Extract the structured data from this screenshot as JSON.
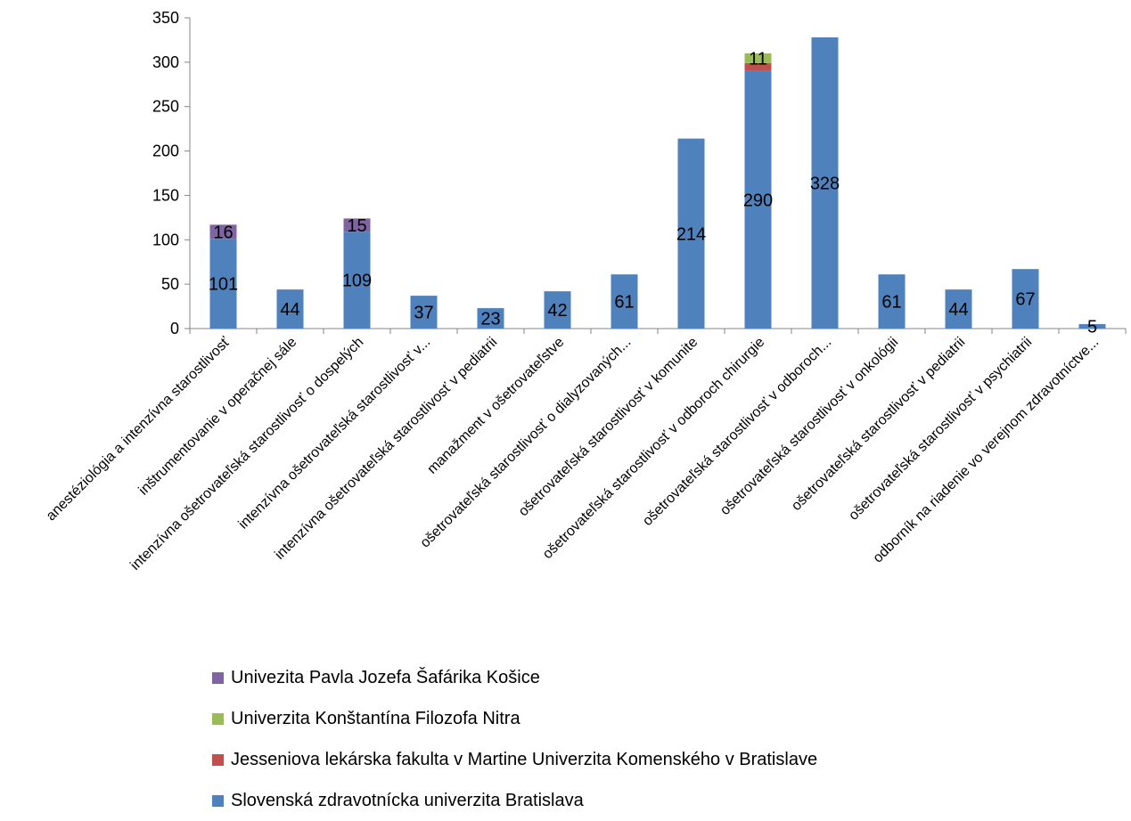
{
  "chart_data": {
    "type": "bar",
    "stacked": true,
    "title": "",
    "xlabel": "",
    "ylabel": "",
    "ylim": [
      0,
      350
    ],
    "yticks": [
      0,
      50,
      100,
      150,
      200,
      250,
      300,
      350
    ],
    "grid": false,
    "legend_position": "bottom",
    "categories": [
      "anestéziológia a intenzívna starostlivosť",
      "inštrumentovanie v operačnej sále",
      "intenzívna ošetrovateľská starostlivosť o dospelých",
      "intenzívna ošetrovateľská starostlivosť v...",
      "intenzívna ošetrovateľská starostlivosť v pediatrii",
      "manažment v ošetrovateľstve",
      "ošetrovateľská starostlivosť o dialyzovaných...",
      "ošetrovateľská starostlivosť v komunite",
      "ošetrovateľská starostlivosť v odboroch chirurgie",
      "ošetrovateľská starostlivosť v odboroch...",
      "ošetrovateľská starostlivosť v onkológii",
      "ošetrovateľská starostlivosť v pediatrii",
      "ošetrovateľská starostlivosť v psychiatrii",
      "odborník na riadenie vo verejnom zdravotníctve..."
    ],
    "series": [
      {
        "name": "Slovenská zdravotnícka univerzita Bratislava",
        "color": "#4F81BD",
        "values": [
          101,
          44,
          109,
          37,
          23,
          42,
          61,
          214,
          290,
          328,
          61,
          44,
          67,
          5
        ],
        "labels": [
          "101",
          "44",
          "109",
          "37",
          "23",
          "42",
          "61",
          "214",
          "290",
          "328",
          "61",
          "44",
          "67",
          "5"
        ]
      },
      {
        "name": "Jesseniova lekárska fakulta v Martine Univerzita Komenského v Bratislave",
        "color": "#C0504D",
        "values": [
          0,
          0,
          0,
          0,
          0,
          0,
          0,
          0,
          9,
          0,
          0,
          0,
          0,
          0
        ],
        "labels": [
          "",
          "",
          "",
          "",
          "",
          "",
          "",
          "",
          "",
          "",
          "",
          "",
          "",
          ""
        ]
      },
      {
        "name": "Univerzita Konštantína Filozofa Nitra",
        "color": "#9BBB59",
        "values": [
          0,
          0,
          0,
          0,
          0,
          0,
          0,
          0,
          11,
          0,
          0,
          0,
          0,
          0
        ],
        "labels": [
          "",
          "",
          "",
          "",
          "",
          "",
          "",
          "",
          "11",
          "",
          "",
          "",
          "",
          ""
        ]
      },
      {
        "name": "Univezita Pavla Jozefa Šafárika Košice",
        "color": "#8064A2",
        "values": [
          16,
          0,
          15,
          0,
          0,
          0,
          0,
          0,
          0,
          0,
          0,
          0,
          0,
          0
        ],
        "labels": [
          "16",
          "",
          "15",
          "",
          "",
          "",
          "",
          "",
          "",
          "",
          "",
          "",
          "",
          ""
        ]
      }
    ],
    "legend_order": [
      3,
      2,
      1,
      0
    ]
  }
}
